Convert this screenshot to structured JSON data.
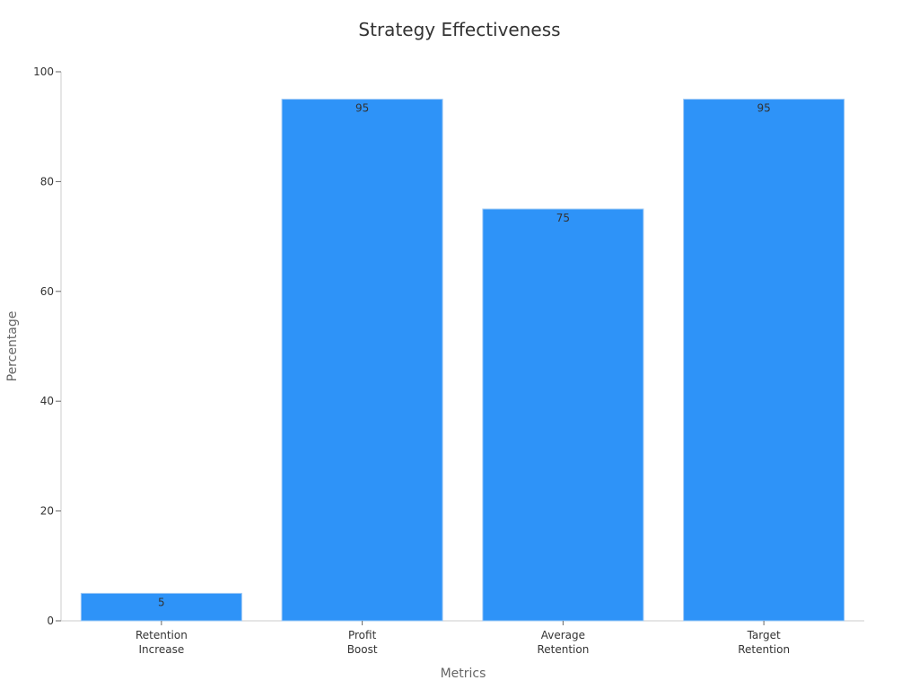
{
  "chart_data": {
    "type": "bar",
    "title": "Strategy Effectiveness",
    "xlabel": "Metrics",
    "ylabel": "Percentage",
    "categories": [
      [
        "Retention",
        "Increase"
      ],
      [
        "Profit",
        "Boost"
      ],
      [
        "Average",
        "Retention"
      ],
      [
        "Target",
        "Retention"
      ]
    ],
    "values": [
      5,
      95,
      75,
      95
    ],
    "ylim": [
      0,
      100
    ],
    "yticks": [
      0,
      20,
      40,
      60,
      80,
      100
    ],
    "grid": false,
    "bar_color": "#2E93F8",
    "bar_edge_color": "#9CC8F5",
    "axis_color": "#CCCCCC"
  }
}
